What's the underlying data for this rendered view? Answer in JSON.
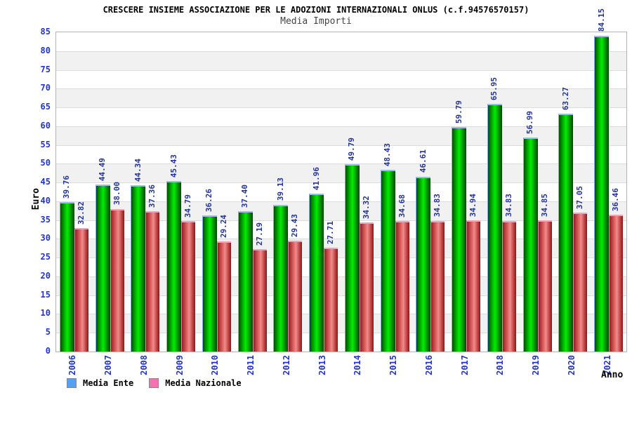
{
  "chart_data": {
    "type": "bar",
    "title": "CRESCERE INSIEME ASSOCIAZIONE PER LE ADOZIONI INTERNAZIONALI ONLUS (c.f.94576570157)",
    "subtitle": "Media Importi",
    "xlabel": "Anno",
    "ylabel": "Euro",
    "ylim": [
      0,
      85
    ],
    "ytick_step": 5,
    "grid": "horizontal-bands",
    "legend_position": "bottom-left",
    "categories": [
      "2006",
      "2007",
      "2008",
      "2009",
      "2010",
      "2011",
      "2012",
      "2013",
      "2014",
      "2015",
      "2016",
      "2017",
      "2018",
      "2019",
      "2020",
      "2021"
    ],
    "series": [
      {
        "name": "Media Ente",
        "legend_fill": "#55a0f2",
        "legend_border": "#888888",
        "bar_dark": "#005000",
        "bar_bright": "#00ee00",
        "cap_color": "#9db9e8",
        "values": [
          39.76,
          44.49,
          44.34,
          45.43,
          36.26,
          37.4,
          39.13,
          41.96,
          49.79,
          48.43,
          46.61,
          59.79,
          65.95,
          56.99,
          63.27,
          84.15
        ]
      },
      {
        "name": "Media Nazionale",
        "legend_fill": "#f472b0",
        "legend_border": "#888888",
        "bar_dark": "#8f2020",
        "bar_bright": "#ee8d8d",
        "cap_color": "#f4a0b8",
        "values": [
          32.82,
          38.0,
          37.36,
          34.79,
          29.24,
          27.19,
          29.43,
          27.71,
          34.32,
          34.68,
          34.83,
          34.94,
          34.83,
          34.85,
          37.05,
          36.46
        ]
      }
    ],
    "colors": {
      "value_label": "#223399",
      "tick_label": "#2233cc",
      "band_gray": "#f1f1f1",
      "band_white": "#ffffff",
      "plot_border": "#b4b4b4"
    }
  }
}
